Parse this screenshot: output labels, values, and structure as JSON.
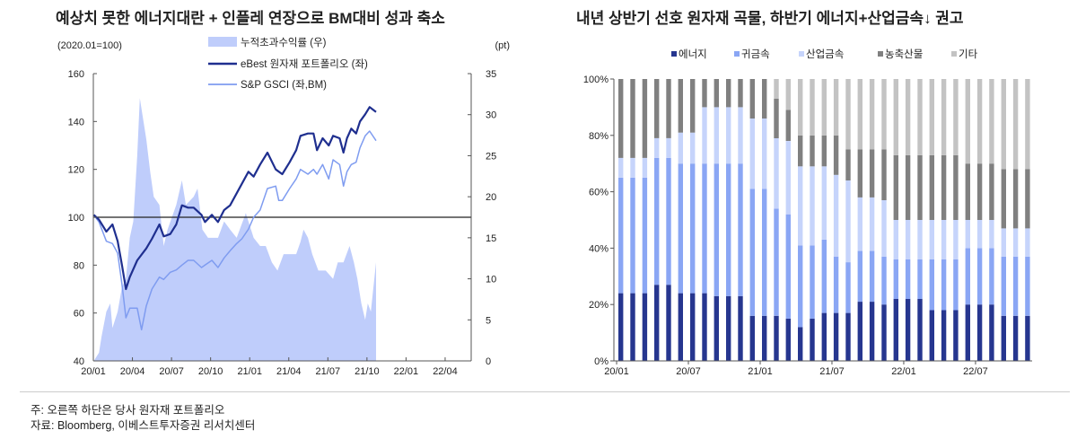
{
  "titles": {
    "left": "예상치 못한 에너지대란 + 인플레 연장으로 BM대비 성과 축소",
    "right": "내년 상반기 선호 원자재 곡물, 하반기 에너지+산업금속↓ 권고"
  },
  "notes": [
    "주: 오른쪽 하단은 당사 원자재 포트폴리오",
    "자료: Bloomberg, 이베스트투자증권 리서치센터"
  ],
  "chart_data": [
    {
      "type": "line",
      "left_unit": "(2020.01=100)",
      "right_unit": "(pt)",
      "ylim": [
        40,
        160
      ],
      "yticks": [
        40,
        60,
        80,
        100,
        120,
        140,
        160
      ],
      "y2lim": [
        0,
        35
      ],
      "y2ticks": [
        0,
        5,
        10,
        15,
        20,
        25,
        30,
        35
      ],
      "xticks": [
        "20/01",
        "20/04",
        "20/07",
        "20/10",
        "21/01",
        "21/04",
        "21/07",
        "21/10",
        "22/01",
        "22/04"
      ],
      "xlim": [
        "2020-01-01",
        "2022-06-01"
      ],
      "reference_line": 100,
      "legend_placement": "top",
      "series": [
        {
          "name": "누적초과수익률 (우)",
          "type": "area",
          "axis": "right",
          "color": "#bfcdfb",
          "points": [
            [
              "2020-01-02",
              0
            ],
            [
              "2020-01-14",
              1
            ],
            [
              "2020-01-20",
              3
            ],
            [
              "2020-02-01",
              6
            ],
            [
              "2020-02-10",
              7
            ],
            [
              "2020-02-15",
              4
            ],
            [
              "2020-02-27",
              6
            ],
            [
              "2020-03-07",
              9
            ],
            [
              "2020-03-16",
              10
            ],
            [
              "2020-03-25",
              15
            ],
            [
              "2020-04-03",
              17
            ],
            [
              "2020-04-12",
              25
            ],
            [
              "2020-04-18",
              32
            ],
            [
              "2020-05-03",
              27
            ],
            [
              "2020-05-12",
              23
            ],
            [
              "2020-05-20",
              20
            ],
            [
              "2020-06-03",
              19
            ],
            [
              "2020-06-13",
              14
            ],
            [
              "2020-06-22",
              16
            ],
            [
              "2020-07-12",
              19
            ],
            [
              "2020-07-25",
              22
            ],
            [
              "2020-08-04",
              19
            ],
            [
              "2020-08-22",
              20
            ],
            [
              "2020-08-31",
              21
            ],
            [
              "2020-09-12",
              16
            ],
            [
              "2020-09-25",
              15
            ],
            [
              "2020-10-18",
              15
            ],
            [
              "2020-11-02",
              17
            ],
            [
              "2020-11-16",
              16
            ],
            [
              "2020-12-01",
              15
            ],
            [
              "2020-12-22",
              18
            ],
            [
              "2020-12-28",
              17
            ],
            [
              "2021-01-10",
              15
            ],
            [
              "2021-01-25",
              14
            ],
            [
              "2021-02-08",
              14
            ],
            [
              "2021-02-22",
              12
            ],
            [
              "2021-03-05",
              11
            ],
            [
              "2021-03-19",
              13
            ],
            [
              "2021-04-03",
              13
            ],
            [
              "2021-04-18",
              13
            ],
            [
              "2021-04-28",
              14.5
            ],
            [
              "2021-05-05",
              16
            ],
            [
              "2021-05-15",
              15
            ],
            [
              "2021-05-25",
              13
            ],
            [
              "2021-06-09",
              11
            ],
            [
              "2021-06-26",
              11
            ],
            [
              "2021-07-13",
              10
            ],
            [
              "2021-07-24",
              12
            ],
            [
              "2021-08-07",
              12
            ],
            [
              "2021-08-21",
              14
            ],
            [
              "2021-08-31",
              12
            ],
            [
              "2021-09-09",
              10
            ],
            [
              "2021-09-18",
              7
            ],
            [
              "2021-09-27",
              5
            ],
            [
              "2021-10-03",
              7
            ],
            [
              "2021-10-10",
              6
            ],
            [
              "2021-10-22",
              12
            ]
          ]
        },
        {
          "name": "eBest 원자재 포트폴리오 (좌)",
          "type": "line",
          "axis": "left",
          "color": "#1f2f8f",
          "points": [
            [
              "2020-01-02",
              101
            ],
            [
              "2020-01-14",
              99
            ],
            [
              "2020-02-01",
              94
            ],
            [
              "2020-02-15",
              97
            ],
            [
              "2020-02-27",
              90
            ],
            [
              "2020-03-07",
              80
            ],
            [
              "2020-03-16",
              70
            ],
            [
              "2020-03-25",
              75
            ],
            [
              "2020-04-12",
              82
            ],
            [
              "2020-05-03",
              87
            ],
            [
              "2020-05-16",
              91
            ],
            [
              "2020-06-03",
              97
            ],
            [
              "2020-06-13",
              92
            ],
            [
              "2020-06-28",
              93
            ],
            [
              "2020-07-12",
              97
            ],
            [
              "2020-07-25",
              105
            ],
            [
              "2020-08-09",
              104
            ],
            [
              "2020-08-22",
              104
            ],
            [
              "2020-09-10",
              101
            ],
            [
              "2020-09-18",
              98
            ],
            [
              "2020-10-04",
              101
            ],
            [
              "2020-10-18",
              98
            ],
            [
              "2020-11-02",
              103
            ],
            [
              "2020-11-16",
              105
            ],
            [
              "2020-12-01",
              110
            ],
            [
              "2020-12-13",
              114
            ],
            [
              "2020-12-28",
              119
            ],
            [
              "2021-01-10",
              117
            ],
            [
              "2021-01-25",
              122
            ],
            [
              "2021-02-12",
              127
            ],
            [
              "2021-03-01",
              120
            ],
            [
              "2021-03-16",
              118
            ],
            [
              "2021-04-03",
              123
            ],
            [
              "2021-04-18",
              128
            ],
            [
              "2021-04-28",
              134
            ],
            [
              "2021-05-15",
              135
            ],
            [
              "2021-05-28",
              135
            ],
            [
              "2021-06-06",
              128
            ],
            [
              "2021-06-19",
              133
            ],
            [
              "2021-07-03",
              130
            ],
            [
              "2021-07-13",
              134
            ],
            [
              "2021-07-28",
              133
            ],
            [
              "2021-08-07",
              127
            ],
            [
              "2021-08-15",
              133
            ],
            [
              "2021-08-25",
              137
            ],
            [
              "2021-09-06",
              135
            ],
            [
              "2021-09-15",
              140
            ],
            [
              "2021-09-27",
              143
            ],
            [
              "2021-10-07",
              146
            ],
            [
              "2021-10-22",
              144
            ]
          ]
        },
        {
          "name": "S&P GSCI (좌,BM)",
          "type": "line",
          "axis": "left",
          "color": "#7f9cf0",
          "points": [
            [
              "2020-01-02",
              101
            ],
            [
              "2020-01-14",
              98
            ],
            [
              "2020-02-01",
              90
            ],
            [
              "2020-02-15",
              89
            ],
            [
              "2020-02-27",
              85
            ],
            [
              "2020-03-07",
              72
            ],
            [
              "2020-03-16",
              58
            ],
            [
              "2020-03-25",
              62
            ],
            [
              "2020-04-12",
              62
            ],
            [
              "2020-04-22",
              53
            ],
            [
              "2020-05-03",
              63
            ],
            [
              "2020-05-16",
              70
            ],
            [
              "2020-06-03",
              75
            ],
            [
              "2020-06-13",
              74
            ],
            [
              "2020-06-28",
              77
            ],
            [
              "2020-07-12",
              78
            ],
            [
              "2020-07-25",
              80
            ],
            [
              "2020-08-09",
              82
            ],
            [
              "2020-08-22",
              82
            ],
            [
              "2020-09-10",
              79
            ],
            [
              "2020-09-18",
              80
            ],
            [
              "2020-10-04",
              82
            ],
            [
              "2020-10-18",
              79
            ],
            [
              "2020-11-02",
              83
            ],
            [
              "2020-11-16",
              86
            ],
            [
              "2020-12-01",
              89
            ],
            [
              "2020-12-13",
              91
            ],
            [
              "2020-12-28",
              95
            ],
            [
              "2021-01-10",
              100
            ],
            [
              "2021-01-25",
              103
            ],
            [
              "2021-02-12",
              112
            ],
            [
              "2021-03-01",
              113
            ],
            [
              "2021-03-08",
              107
            ],
            [
              "2021-03-16",
              107
            ],
            [
              "2021-04-03",
              112
            ],
            [
              "2021-04-18",
              116
            ],
            [
              "2021-04-28",
              120
            ],
            [
              "2021-05-15",
              118
            ],
            [
              "2021-05-28",
              120
            ],
            [
              "2021-06-06",
              118
            ],
            [
              "2021-06-19",
              122
            ],
            [
              "2021-07-03",
              116
            ],
            [
              "2021-07-13",
              124
            ],
            [
              "2021-07-28",
              122
            ],
            [
              "2021-08-07",
              113
            ],
            [
              "2021-08-15",
              119
            ],
            [
              "2021-08-25",
              122
            ],
            [
              "2021-09-06",
              123
            ],
            [
              "2021-09-15",
              129
            ],
            [
              "2021-09-27",
              134
            ],
            [
              "2021-10-07",
              136
            ],
            [
              "2021-10-22",
              132
            ]
          ]
        }
      ]
    },
    {
      "type": "bar",
      "stacked": "percent",
      "ylim": [
        0,
        100
      ],
      "yticks": [
        "0%",
        "20%",
        "40%",
        "60%",
        "80%",
        "100%"
      ],
      "xticks": [
        "20/01",
        "20/07",
        "21/01",
        "21/07",
        "22/01",
        "22/07"
      ],
      "legend_placement": "top",
      "categories": [
        "20/01",
        "20/02",
        "20/03",
        "20/04",
        "20/05",
        "20/06",
        "20/07",
        "20/08",
        "20/09",
        "20/10",
        "20/11",
        "20/12",
        "21/01",
        "21/02",
        "21/03",
        "21/04",
        "21/05",
        "21/06",
        "21/07",
        "21/08",
        "21/09",
        "21/10",
        "21/11",
        "21/12",
        "22/01",
        "22/02",
        "22/03",
        "22/04",
        "22/05",
        "22/06",
        "22/07",
        "22/08",
        "22/09",
        "22/10",
        "22/11"
      ],
      "series": [
        {
          "name": "에너지",
          "color": "#26368f",
          "values": [
            24,
            24,
            24,
            27,
            27,
            24,
            24,
            24,
            23,
            23,
            23,
            16,
            16,
            16,
            15,
            12,
            15,
            17,
            17,
            17,
            21,
            21,
            20,
            22,
            22,
            22,
            18,
            18,
            18,
            20,
            20,
            20,
            16,
            16,
            16
          ]
        },
        {
          "name": "귀금속",
          "color": "#8aa6f4",
          "values": [
            41,
            41,
            41,
            45,
            45,
            46,
            46,
            46,
            47,
            47,
            47,
            45,
            45,
            38,
            37,
            29,
            26,
            26,
            20,
            18,
            18,
            18,
            17,
            14,
            14,
            14,
            18,
            18,
            18,
            20,
            20,
            20,
            21,
            21,
            21
          ]
        },
        {
          "name": "산업금속",
          "color": "#c6d4fb",
          "values": [
            7,
            7,
            7,
            7,
            7,
            11,
            11,
            20,
            20,
            20,
            20,
            25,
            25,
            25,
            26,
            28,
            28,
            26,
            29,
            29,
            19,
            19,
            20,
            14,
            14,
            14,
            14,
            14,
            14,
            10,
            10,
            10,
            10,
            10,
            10
          ]
        },
        {
          "name": "농축산물",
          "color": "#808080",
          "values": [
            28,
            28,
            28,
            21,
            21,
            19,
            19,
            10,
            10,
            10,
            10,
            14,
            14,
            14,
            11,
            11,
            11,
            11,
            14,
            11,
            17,
            17,
            18,
            23,
            23,
            23,
            23,
            23,
            23,
            20,
            20,
            20,
            21,
            21,
            21
          ]
        },
        {
          "name": "기타",
          "color": "#c3c3c3",
          "values": [
            0,
            0,
            0,
            0,
            0,
            0,
            0,
            0,
            0,
            0,
            0,
            0,
            0,
            7,
            11,
            20,
            20,
            20,
            20,
            25,
            25,
            25,
            25,
            27,
            27,
            27,
            27,
            27,
            27,
            30,
            30,
            30,
            32,
            32,
            32
          ]
        }
      ]
    }
  ]
}
